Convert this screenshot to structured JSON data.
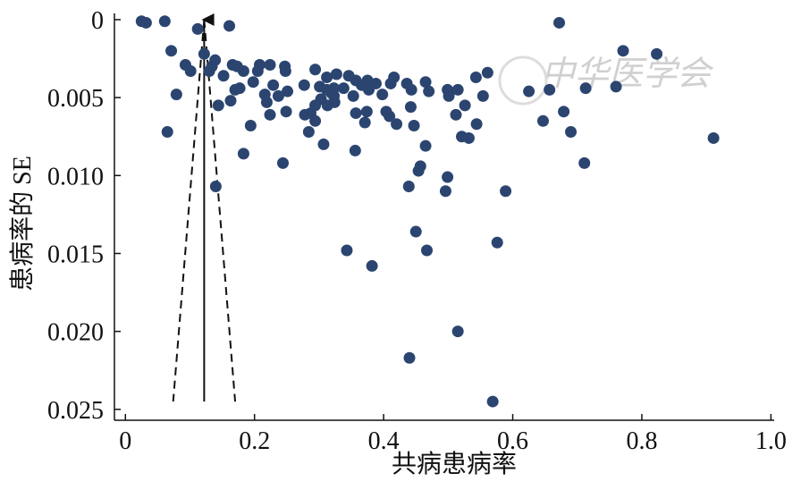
{
  "chart_data": {
    "type": "scatter",
    "xlabel": "共病患病率",
    "ylabel": "患病率的 SE",
    "watermark": "中华医学会",
    "color": "#2b4570",
    "xlim": [
      -0.017,
      1.005
    ],
    "ylim": [
      -0.0004,
      0.0257
    ],
    "y_inverted": true,
    "xticks": [
      0,
      0.2,
      0.4,
      0.6,
      0.8,
      {
        "value": 1,
        "label": "1.0"
      }
    ],
    "yticks": [
      0,
      0.005,
      {
        "value": 0.01,
        "label": "0.010"
      },
      0.015,
      {
        "value": 0.02,
        "label": "0.020"
      },
      0.025
    ],
    "x": [
      0.025,
      0.032,
      0.061,
      0.112,
      0.161,
      0.672,
      0.771,
      0.823,
      0.071,
      0.093,
      0.101,
      0.079,
      0.065,
      0.122,
      0.139,
      0.134,
      0.13,
      0.152,
      0.166,
      0.173,
      0.183,
      0.177,
      0.17,
      0.205,
      0.208,
      0.224,
      0.247,
      0.248,
      0.229,
      0.216,
      0.198,
      0.219,
      0.224,
      0.251,
      0.237,
      0.249,
      0.144,
      0.163,
      0.194,
      0.183,
      0.244,
      0.14,
      0.294,
      0.312,
      0.327,
      0.346,
      0.357,
      0.366,
      0.375,
      0.388,
      0.398,
      0.377,
      0.353,
      0.338,
      0.312,
      0.303,
      0.294,
      0.287,
      0.294,
      0.277,
      0.301,
      0.323,
      0.319,
      0.323,
      0.313,
      0.324,
      0.278,
      0.284,
      0.307,
      0.357,
      0.371,
      0.374,
      0.356,
      0.409,
      0.42,
      0.404,
      0.411,
      0.416,
      0.436,
      0.443,
      0.442,
      0.465,
      0.47,
      0.499,
      0.501,
      0.515,
      0.512,
      0.526,
      0.521,
      0.532,
      0.543,
      0.561,
      0.554,
      0.544,
      0.447,
      0.465,
      0.457,
      0.454,
      0.439,
      0.499,
      0.496,
      0.589,
      0.625,
      0.657,
      0.647,
      0.679,
      0.69,
      0.713,
      0.76,
      0.711,
      0.343,
      0.382,
      0.45,
      0.467,
      0.576,
      0.515,
      0.44,
      0.569,
      0.911
    ],
    "values": [
      0.0001,
      0.0002,
      0.0001,
      0.0006,
      0.0004,
      0.0002,
      0.002,
      0.0022,
      0.002,
      0.0029,
      0.0033,
      0.0048,
      0.0072,
      0.0022,
      0.0026,
      0.003,
      0.0033,
      0.0036,
      0.0029,
      0.003,
      0.0033,
      0.0044,
      0.0045,
      0.0033,
      0.0029,
      0.0029,
      0.003,
      0.0033,
      0.0042,
      0.0048,
      0.004,
      0.0053,
      0.0061,
      0.0046,
      0.0049,
      0.0059,
      0.0055,
      0.0052,
      0.0068,
      0.0086,
      0.0092,
      0.0107,
      0.0032,
      0.0037,
      0.0035,
      0.0036,
      0.0039,
      0.0042,
      0.0039,
      0.0041,
      0.0048,
      0.0045,
      0.0049,
      0.0044,
      0.0045,
      0.0051,
      0.0055,
      0.006,
      0.0065,
      0.0042,
      0.0043,
      0.0044,
      0.0047,
      0.0049,
      0.0055,
      0.0053,
      0.0061,
      0.0072,
      0.008,
      0.006,
      0.0066,
      0.0059,
      0.0084,
      0.0062,
      0.0067,
      0.0059,
      0.0041,
      0.0037,
      0.0041,
      0.0045,
      0.0056,
      0.004,
      0.0046,
      0.0045,
      0.0049,
      0.0045,
      0.0061,
      0.0055,
      0.0075,
      0.0076,
      0.0037,
      0.0034,
      0.0049,
      0.0067,
      0.0068,
      0.0081,
      0.0094,
      0.0097,
      0.0107,
      0.0101,
      0.011,
      0.011,
      0.0046,
      0.0045,
      0.0065,
      0.0059,
      0.0072,
      0.0044,
      0.0043,
      0.0092,
      0.0148,
      0.0158,
      0.0136,
      0.0148,
      0.0143,
      0.02,
      0.0217,
      0.0245,
      0.0076
    ],
    "reference_lines": [
      {
        "style": "solid",
        "x": [
          0.122,
          0.122
        ],
        "y": [
          0.0245,
          0
        ]
      },
      {
        "style": "dashed",
        "x": [
          0.122,
          0.074
        ],
        "y": [
          0,
          0.0245
        ]
      },
      {
        "style": "dashed",
        "x": [
          0.122,
          0.17
        ],
        "y": [
          0,
          0.0245
        ]
      }
    ]
  }
}
